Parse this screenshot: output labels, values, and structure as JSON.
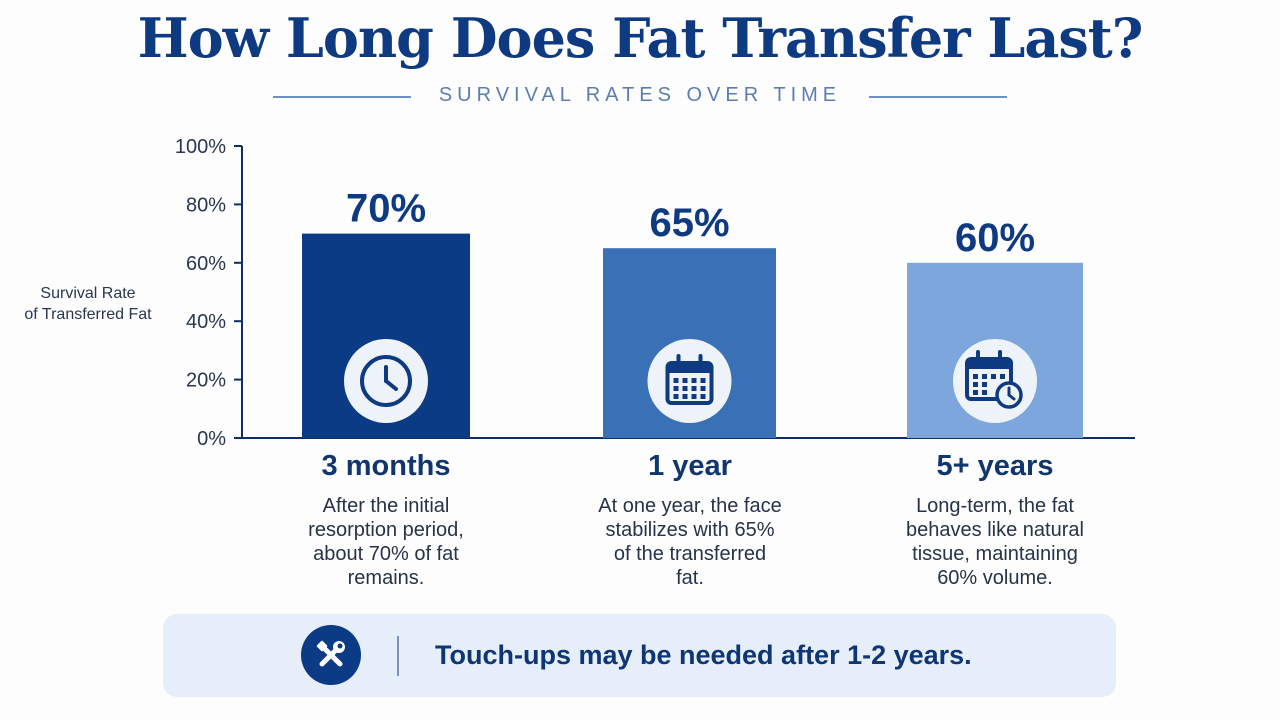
{
  "header": {
    "title": "How Long Does Fat Transfer Last?",
    "subtitle": "SURVIVAL RATES OVER TIME"
  },
  "chart_data": {
    "type": "bar",
    "title": "How Long Does Fat Transfer Last?",
    "subtitle": "SURVIVAL RATES OVER TIME",
    "ylabel": "Survival Rate of Transferred Fat",
    "ylabel_lines": [
      "Survival Rate",
      "of Transferred Fat"
    ],
    "xlabel": "",
    "ylim": [
      0,
      100
    ],
    "yticks": [
      0,
      20,
      40,
      60,
      80,
      100
    ],
    "ytick_labels": [
      "0%",
      "20%",
      "40%",
      "60%",
      "80%",
      "100%"
    ],
    "categories": [
      "3 months",
      "1 year",
      "5+ years"
    ],
    "values": [
      70,
      65,
      60
    ],
    "value_labels": [
      "70%",
      "65%",
      "60%"
    ],
    "colors": [
      "#0b3b84",
      "#3a71b6",
      "#7da7dc"
    ],
    "icons": [
      "clock-icon",
      "calendar-icon",
      "calendar-clock-icon"
    ],
    "descriptions": [
      [
        "After the initial",
        "resorption period,",
        "about 70% of fat",
        "remains."
      ],
      [
        "At one year, the face",
        "stabilizes with 65%",
        "of the transferred",
        "fat."
      ],
      [
        "Long-term, the fat",
        "behaves like natural",
        "tissue, maintaining",
        "60% volume."
      ]
    ],
    "grid": false,
    "legend": "none"
  },
  "banner": {
    "icon": "tools-icon",
    "text": "Touch-ups may be needed after 1-2 years."
  },
  "colors": {
    "title": "#0d3a80",
    "accent": "#0b3b84",
    "banner_bg": "#e6eef9"
  }
}
